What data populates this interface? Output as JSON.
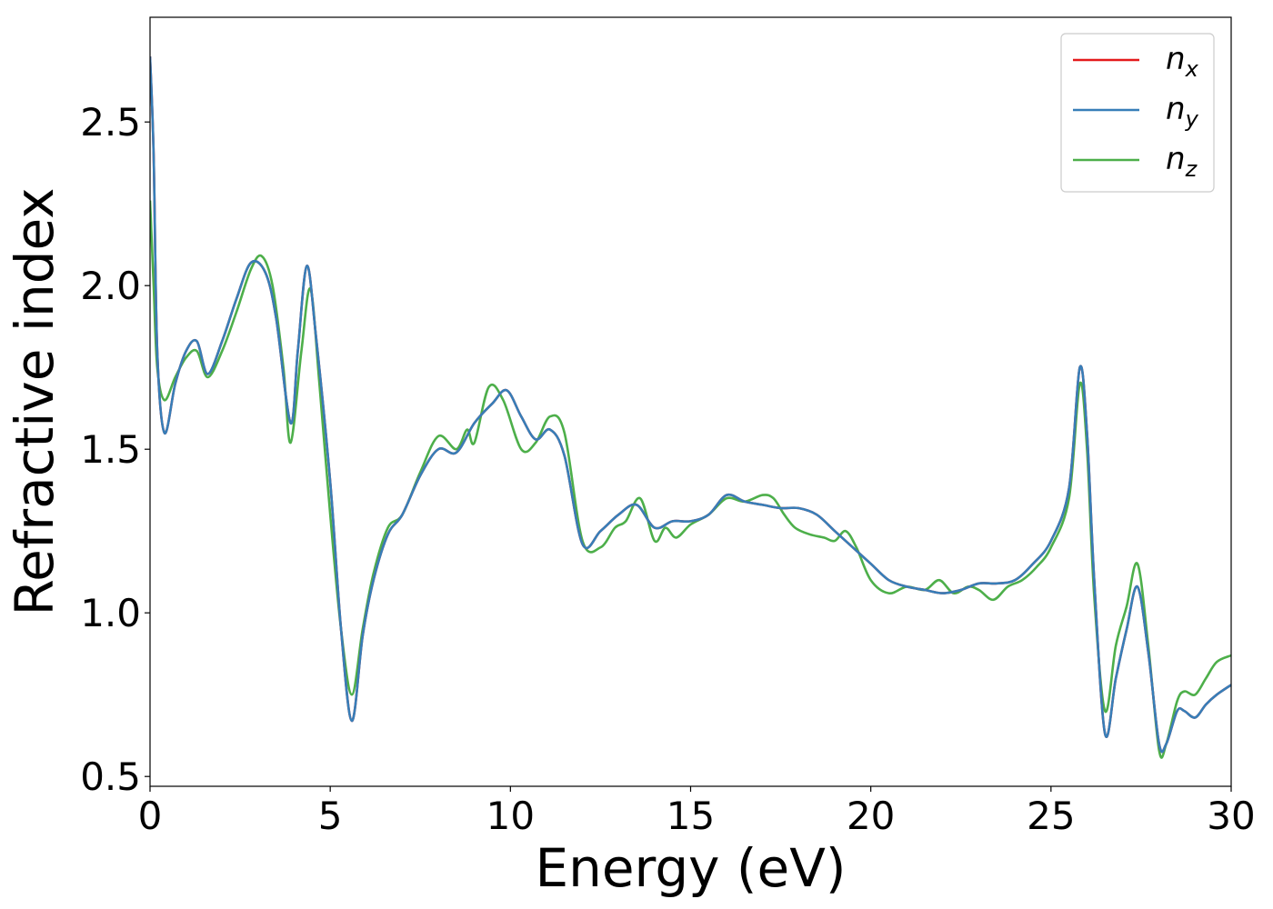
{
  "chart_data": {
    "type": "line",
    "xlabel": "Energy (eV)",
    "ylabel": "Refractive index",
    "xlim": [
      0,
      30
    ],
    "ylim": [
      0.47,
      2.82
    ],
    "xticks": [
      0,
      5,
      10,
      15,
      20,
      25,
      30
    ],
    "xtick_labels": [
      "0",
      "5",
      "10",
      "15",
      "20",
      "25",
      "30"
    ],
    "yticks": [
      0.5,
      1.0,
      1.5,
      2.0,
      2.5
    ],
    "ytick_labels": [
      "0.5",
      "1.0",
      "1.5",
      "2.0",
      "2.5"
    ],
    "grid": false,
    "legend_position": "top-right",
    "series": [
      {
        "name": "n_x",
        "label_main": "n",
        "label_sub": "x",
        "color": "#e41a1c",
        "x": [
          0,
          0.1,
          0.2,
          0.4,
          0.7,
          1.0,
          1.3,
          1.6,
          2.0,
          2.4,
          2.8,
          3.2,
          3.5,
          3.9,
          4.1,
          4.35,
          4.6,
          5.0,
          5.3,
          5.6,
          5.9,
          6.2,
          6.6,
          7.0,
          7.5,
          8.0,
          8.5,
          9.0,
          9.5,
          9.9,
          10.3,
          10.7,
          11.1,
          11.5,
          12.0,
          12.5,
          13.0,
          13.5,
          14.0,
          14.5,
          15.0,
          15.5,
          16.0,
          16.5,
          17.0,
          17.5,
          18.0,
          18.5,
          19.0,
          19.5,
          20.0,
          20.5,
          21.0,
          21.5,
          22.0,
          22.5,
          23.0,
          23.5,
          24.0,
          24.5,
          25.0,
          25.5,
          25.8,
          26.0,
          26.2,
          26.5,
          26.8,
          27.1,
          27.4,
          27.7,
          28.0,
          28.2,
          28.5,
          28.7,
          29.0,
          29.3,
          29.6,
          30.0
        ],
        "y": [
          2.7,
          2.4,
          1.8,
          1.55,
          1.7,
          1.8,
          1.83,
          1.73,
          1.83,
          1.96,
          2.07,
          2.04,
          1.9,
          1.58,
          1.8,
          2.06,
          1.85,
          1.4,
          0.95,
          0.67,
          0.93,
          1.1,
          1.24,
          1.3,
          1.42,
          1.5,
          1.49,
          1.58,
          1.64,
          1.68,
          1.6,
          1.53,
          1.56,
          1.48,
          1.21,
          1.25,
          1.3,
          1.33,
          1.26,
          1.28,
          1.28,
          1.3,
          1.36,
          1.34,
          1.33,
          1.32,
          1.32,
          1.3,
          1.25,
          1.2,
          1.15,
          1.1,
          1.08,
          1.07,
          1.06,
          1.07,
          1.09,
          1.09,
          1.1,
          1.15,
          1.22,
          1.38,
          1.75,
          1.55,
          1.1,
          0.63,
          0.8,
          0.95,
          1.08,
          0.88,
          0.6,
          0.6,
          0.7,
          0.7,
          0.68,
          0.72,
          0.75,
          0.78
        ]
      },
      {
        "name": "n_y",
        "label_main": "n",
        "label_sub": "y",
        "color": "#377eb8",
        "x": [
          0,
          0.1,
          0.2,
          0.4,
          0.7,
          1.0,
          1.3,
          1.6,
          2.0,
          2.4,
          2.8,
          3.2,
          3.5,
          3.9,
          4.1,
          4.35,
          4.6,
          5.0,
          5.3,
          5.6,
          5.9,
          6.2,
          6.6,
          7.0,
          7.5,
          8.0,
          8.5,
          9.0,
          9.5,
          9.9,
          10.3,
          10.7,
          11.1,
          11.5,
          12.0,
          12.5,
          13.0,
          13.5,
          14.0,
          14.5,
          15.0,
          15.5,
          16.0,
          16.5,
          17.0,
          17.5,
          18.0,
          18.5,
          19.0,
          19.5,
          20.0,
          20.5,
          21.0,
          21.5,
          22.0,
          22.5,
          23.0,
          23.5,
          24.0,
          24.5,
          25.0,
          25.5,
          25.8,
          26.0,
          26.2,
          26.5,
          26.8,
          27.1,
          27.4,
          27.7,
          28.0,
          28.2,
          28.5,
          28.7,
          29.0,
          29.3,
          29.6,
          30.0
        ],
        "y": [
          2.7,
          2.4,
          1.8,
          1.55,
          1.7,
          1.8,
          1.83,
          1.73,
          1.83,
          1.96,
          2.07,
          2.04,
          1.9,
          1.58,
          1.8,
          2.06,
          1.85,
          1.4,
          0.95,
          0.67,
          0.93,
          1.1,
          1.24,
          1.3,
          1.42,
          1.5,
          1.49,
          1.58,
          1.64,
          1.68,
          1.6,
          1.53,
          1.56,
          1.48,
          1.21,
          1.25,
          1.3,
          1.33,
          1.26,
          1.28,
          1.28,
          1.3,
          1.36,
          1.34,
          1.33,
          1.32,
          1.32,
          1.3,
          1.25,
          1.2,
          1.15,
          1.1,
          1.08,
          1.07,
          1.06,
          1.07,
          1.09,
          1.09,
          1.1,
          1.15,
          1.22,
          1.38,
          1.75,
          1.55,
          1.1,
          0.63,
          0.8,
          0.95,
          1.08,
          0.88,
          0.6,
          0.6,
          0.7,
          0.7,
          0.68,
          0.72,
          0.75,
          0.78
        ]
      },
      {
        "name": "n_z",
        "label_main": "n",
        "label_sub": "z",
        "color": "#4daf4a",
        "x": [
          0,
          0.1,
          0.2,
          0.4,
          0.7,
          1.0,
          1.3,
          1.6,
          2.0,
          2.4,
          2.8,
          3.1,
          3.4,
          3.7,
          3.9,
          4.2,
          4.45,
          4.7,
          5.0,
          5.3,
          5.6,
          5.9,
          6.2,
          6.6,
          7.0,
          7.5,
          8.0,
          8.5,
          8.8,
          9.0,
          9.4,
          9.8,
          10.3,
          10.7,
          11.1,
          11.5,
          12.0,
          12.5,
          12.9,
          13.2,
          13.6,
          14.0,
          14.3,
          14.6,
          15.0,
          15.5,
          16.0,
          16.5,
          17.0,
          17.3,
          17.6,
          17.9,
          18.3,
          18.7,
          19.0,
          19.3,
          19.6,
          20.0,
          20.5,
          21.0,
          21.5,
          21.9,
          22.3,
          22.7,
          23.0,
          23.4,
          23.8,
          24.2,
          24.6,
          25.0,
          25.5,
          25.8,
          26.0,
          26.2,
          26.5,
          26.8,
          27.1,
          27.4,
          27.7,
          28.0,
          28.2,
          28.5,
          28.7,
          29.0,
          29.3,
          29.6,
          30.0
        ],
        "y": [
          2.26,
          2.0,
          1.75,
          1.65,
          1.72,
          1.78,
          1.8,
          1.72,
          1.8,
          1.92,
          2.05,
          2.09,
          2.0,
          1.75,
          1.52,
          1.8,
          1.99,
          1.7,
          1.3,
          0.95,
          0.75,
          0.95,
          1.12,
          1.26,
          1.3,
          1.43,
          1.54,
          1.5,
          1.56,
          1.52,
          1.69,
          1.65,
          1.5,
          1.52,
          1.6,
          1.55,
          1.22,
          1.2,
          1.26,
          1.28,
          1.35,
          1.22,
          1.26,
          1.23,
          1.27,
          1.3,
          1.35,
          1.34,
          1.36,
          1.35,
          1.3,
          1.26,
          1.24,
          1.23,
          1.22,
          1.25,
          1.2,
          1.1,
          1.06,
          1.08,
          1.07,
          1.1,
          1.06,
          1.08,
          1.07,
          1.04,
          1.08,
          1.1,
          1.14,
          1.2,
          1.35,
          1.7,
          1.5,
          1.05,
          0.7,
          0.9,
          1.02,
          1.15,
          0.9,
          0.58,
          0.6,
          0.73,
          0.76,
          0.75,
          0.8,
          0.85,
          0.87
        ]
      }
    ]
  }
}
